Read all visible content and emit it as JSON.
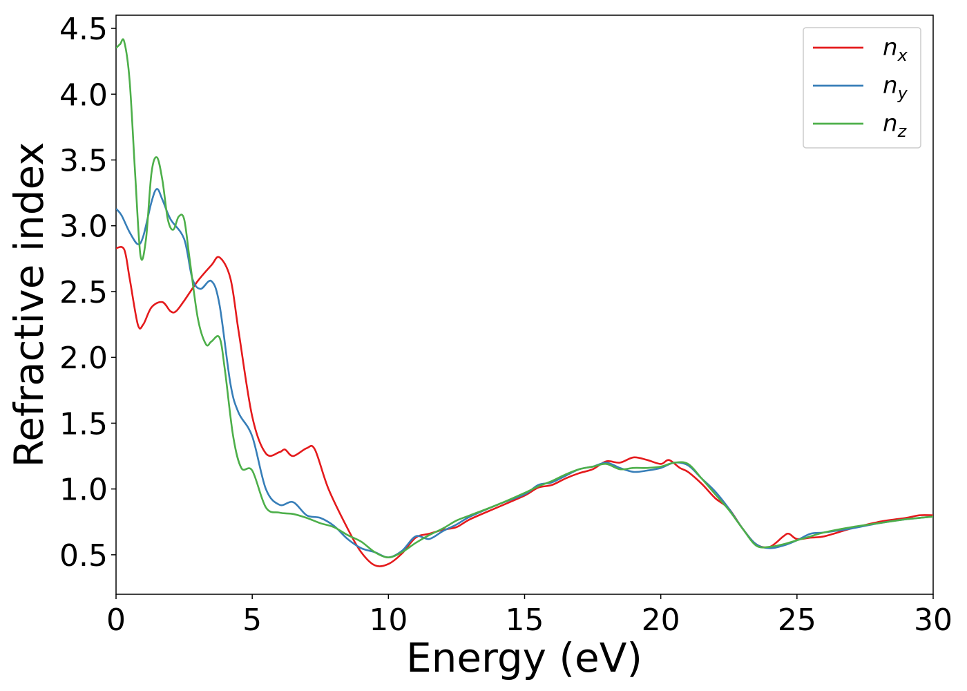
{
  "chart_data": {
    "type": "line",
    "xlabel": "Energy (eV)",
    "ylabel": "Refractive index",
    "xlim": [
      0,
      30
    ],
    "ylim": [
      0.2,
      4.6
    ],
    "xticks": [
      "0",
      "5",
      "10",
      "15",
      "20",
      "25",
      "30"
    ],
    "yticks": [
      "0.5",
      "1.0",
      "1.5",
      "2.0",
      "2.5",
      "3.0",
      "3.5",
      "4.0",
      "4.5"
    ],
    "grid": false,
    "legend_position": "top-right",
    "series": [
      {
        "name": "n",
        "sub": "x",
        "color": "#e41a1c",
        "x": [
          0,
          0.3,
          0.5,
          0.8,
          1.0,
          1.3,
          1.7,
          2.0,
          2.2,
          2.5,
          3.0,
          3.5,
          3.8,
          4.2,
          4.5,
          5.0,
          5.5,
          6.0,
          6.2,
          6.5,
          7.0,
          7.3,
          7.8,
          8.5,
          9.0,
          9.5,
          10.0,
          10.5,
          11.0,
          11.5,
          12.0,
          12.5,
          13.0,
          14.0,
          15.0,
          15.5,
          16.0,
          16.5,
          17.0,
          17.5,
          18.0,
          18.5,
          19.0,
          19.5,
          20.0,
          20.3,
          20.7,
          21.0,
          21.5,
          22.0,
          22.5,
          23.0,
          23.5,
          24.0,
          24.5,
          24.7,
          25.0,
          25.5,
          26.0,
          27.0,
          28.0,
          29.0,
          29.5,
          30.0
        ],
        "values": [
          2.83,
          2.82,
          2.6,
          2.25,
          2.25,
          2.38,
          2.42,
          2.35,
          2.35,
          2.43,
          2.58,
          2.7,
          2.76,
          2.6,
          2.2,
          1.55,
          1.27,
          1.28,
          1.3,
          1.25,
          1.31,
          1.3,
          1.0,
          0.7,
          0.52,
          0.42,
          0.43,
          0.51,
          0.63,
          0.66,
          0.69,
          0.71,
          0.77,
          0.86,
          0.95,
          1.01,
          1.03,
          1.08,
          1.12,
          1.15,
          1.21,
          1.2,
          1.24,
          1.22,
          1.19,
          1.22,
          1.16,
          1.13,
          1.04,
          0.93,
          0.85,
          0.7,
          0.58,
          0.56,
          0.64,
          0.66,
          0.62,
          0.63,
          0.64,
          0.7,
          0.75,
          0.78,
          0.8,
          0.8
        ]
      },
      {
        "name": "n",
        "sub": "y",
        "color": "#377eb8",
        "x": [
          0,
          0.2,
          0.5,
          0.8,
          1.0,
          1.3,
          1.5,
          1.7,
          2.0,
          2.5,
          2.8,
          3.1,
          3.5,
          3.8,
          4.2,
          4.5,
          5.0,
          5.5,
          6.0,
          6.5,
          7.0,
          7.5,
          8.0,
          8.5,
          9.0,
          9.5,
          10.0,
          10.5,
          11.0,
          11.5,
          12.0,
          12.5,
          13.0,
          14.0,
          15.0,
          15.5,
          16.0,
          16.5,
          17.0,
          17.5,
          18.0,
          18.5,
          19.0,
          19.5,
          20.0,
          20.5,
          21.0,
          21.5,
          22.0,
          22.5,
          23.0,
          23.5,
          24.0,
          24.5,
          25.0,
          25.5,
          26.0,
          27.0,
          28.0,
          29.0,
          30.0
        ],
        "values": [
          3.13,
          3.08,
          2.95,
          2.86,
          2.92,
          3.18,
          3.28,
          3.2,
          3.05,
          2.9,
          2.6,
          2.52,
          2.58,
          2.4,
          1.8,
          1.58,
          1.4,
          1.0,
          0.88,
          0.9,
          0.8,
          0.78,
          0.72,
          0.62,
          0.55,
          0.52,
          0.48,
          0.53,
          0.64,
          0.62,
          0.68,
          0.73,
          0.79,
          0.88,
          0.96,
          1.03,
          1.05,
          1.1,
          1.15,
          1.17,
          1.2,
          1.16,
          1.13,
          1.14,
          1.16,
          1.2,
          1.18,
          1.08,
          0.98,
          0.85,
          0.7,
          0.58,
          0.55,
          0.57,
          0.61,
          0.66,
          0.67,
          0.7,
          0.74,
          0.77,
          0.79
        ]
      },
      {
        "name": "n",
        "sub": "z",
        "color": "#4daf4a",
        "x": [
          0,
          0.15,
          0.3,
          0.5,
          0.7,
          0.9,
          1.1,
          1.3,
          1.5,
          1.7,
          1.9,
          2.1,
          2.3,
          2.5,
          2.7,
          3.0,
          3.3,
          3.5,
          3.8,
          4.0,
          4.3,
          4.6,
          5.0,
          5.5,
          6.0,
          6.5,
          7.0,
          7.5,
          8.0,
          8.5,
          9.0,
          9.5,
          10.0,
          10.5,
          11.0,
          11.5,
          12.0,
          12.5,
          13.0,
          14.0,
          15.0,
          15.5,
          16.0,
          16.5,
          17.0,
          17.5,
          18.0,
          18.5,
          19.0,
          19.5,
          20.0,
          20.5,
          21.0,
          21.5,
          22.0,
          22.5,
          23.0,
          23.5,
          24.0,
          24.5,
          25.0,
          25.5,
          26.0,
          27.0,
          28.0,
          29.0,
          30.0
        ],
        "values": [
          4.35,
          4.38,
          4.4,
          4.1,
          3.4,
          2.77,
          2.9,
          3.4,
          3.52,
          3.35,
          3.05,
          2.97,
          3.07,
          3.05,
          2.75,
          2.3,
          2.1,
          2.12,
          2.15,
          1.9,
          1.4,
          1.16,
          1.14,
          0.86,
          0.82,
          0.81,
          0.78,
          0.74,
          0.71,
          0.65,
          0.6,
          0.52,
          0.48,
          0.52,
          0.59,
          0.65,
          0.7,
          0.76,
          0.8,
          0.88,
          0.97,
          1.02,
          1.06,
          1.11,
          1.15,
          1.17,
          1.19,
          1.15,
          1.16,
          1.16,
          1.17,
          1.2,
          1.19,
          1.08,
          0.96,
          0.84,
          0.7,
          0.57,
          0.56,
          0.58,
          0.61,
          0.64,
          0.67,
          0.71,
          0.74,
          0.77,
          0.79
        ]
      }
    ]
  }
}
